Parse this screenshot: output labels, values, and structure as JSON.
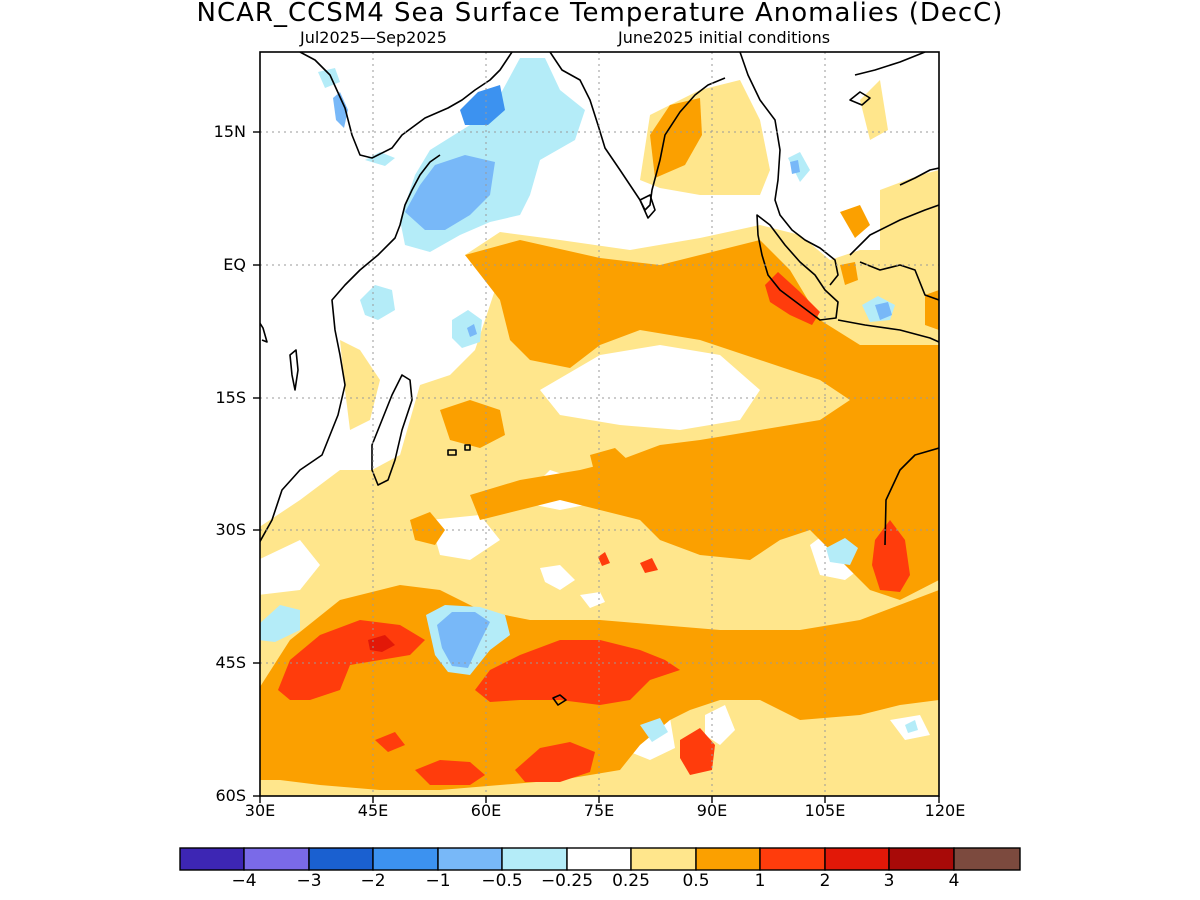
{
  "header": {
    "title": "NCAR_CCSM4 Sea Surface Temperature Anomalies (DecC)",
    "period": "Jul2025—Sep2025",
    "init": "June2025 initial conditions"
  },
  "axes": {
    "lat_labels": [
      "15N",
      "EQ",
      "15S",
      "30S",
      "45S",
      "60S"
    ],
    "lon_labels": [
      "30E",
      "45E",
      "60E",
      "75E",
      "90E",
      "105E",
      "120E"
    ],
    "lat_range": [
      -60,
      23
    ],
    "lon_range": [
      30,
      120
    ],
    "grid": "dotted"
  },
  "colorbar": {
    "labels": [
      "−4",
      "−3",
      "−2",
      "−1",
      "−0.5",
      "−0.25",
      "0.25",
      "0.5",
      "1",
      "2",
      "3",
      "4"
    ],
    "colors": [
      "#3d26b4",
      "#7a6ae8",
      "#1a60d0",
      "#3c92f0",
      "#78b8f8",
      "#b4ecf8",
      "#ffffff",
      "#ffe68c",
      "#fba000",
      "#ff3c0c",
      "#e21808",
      "#a80a08",
      "#7c4a3e"
    ]
  },
  "map": {
    "colors": {
      "pale_yellow": "#ffe68c",
      "orange": "#fba000",
      "red_orange": "#ff3c0c",
      "light_cyan": "#b4ecf8",
      "light_blue": "#78b8f8",
      "blue": "#3c92f0"
    }
  }
}
